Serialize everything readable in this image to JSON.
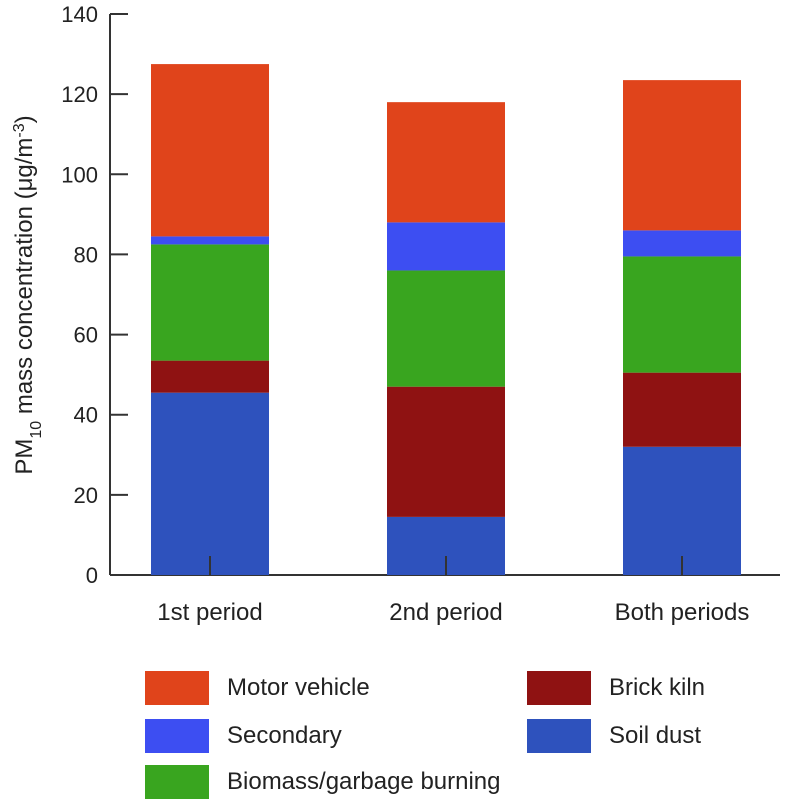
{
  "chart_data": {
    "type": "bar",
    "stacked": true,
    "title": "",
    "xlabel": "",
    "ylabel": {
      "prefix": "PM",
      "subscript": "10",
      "middle": " mass concentration (μg/m",
      "superscript": "-3",
      "suffix": ")"
    },
    "ylim": [
      0,
      140
    ],
    "yticks": [
      "0",
      "20",
      "40",
      "60",
      "80",
      "100",
      "120",
      "140"
    ],
    "categories": [
      "1st period",
      "2nd period",
      "Both periods"
    ],
    "series": [
      {
        "name": "Soil dust",
        "color": "#2e52bd",
        "values": [
          45.5,
          14.5,
          32
        ]
      },
      {
        "name": "Brick kiln",
        "color": "#8f1212",
        "values": [
          8,
          32.5,
          18.5
        ]
      },
      {
        "name": "Biomass/garbage burning",
        "color": "#39a51f",
        "values": [
          29,
          29,
          29
        ]
      },
      {
        "name": "Secondary",
        "color": "#3d4ef2",
        "values": [
          2,
          12,
          6.5
        ]
      },
      {
        "name": "Motor vehicle",
        "color": "#e0441b",
        "values": [
          43,
          30,
          37.5
        ]
      }
    ]
  },
  "legend": {
    "items": [
      {
        "label": "Motor vehicle",
        "color": "#e0441b"
      },
      {
        "label": "Secondary",
        "color": "#3d4ef2"
      },
      {
        "label": "Biomass/garbage burning",
        "color": "#39a51f"
      },
      {
        "label": "Brick kiln",
        "color": "#8f1212"
      },
      {
        "label": "Soil dust",
        "color": "#2e52bd"
      }
    ]
  }
}
